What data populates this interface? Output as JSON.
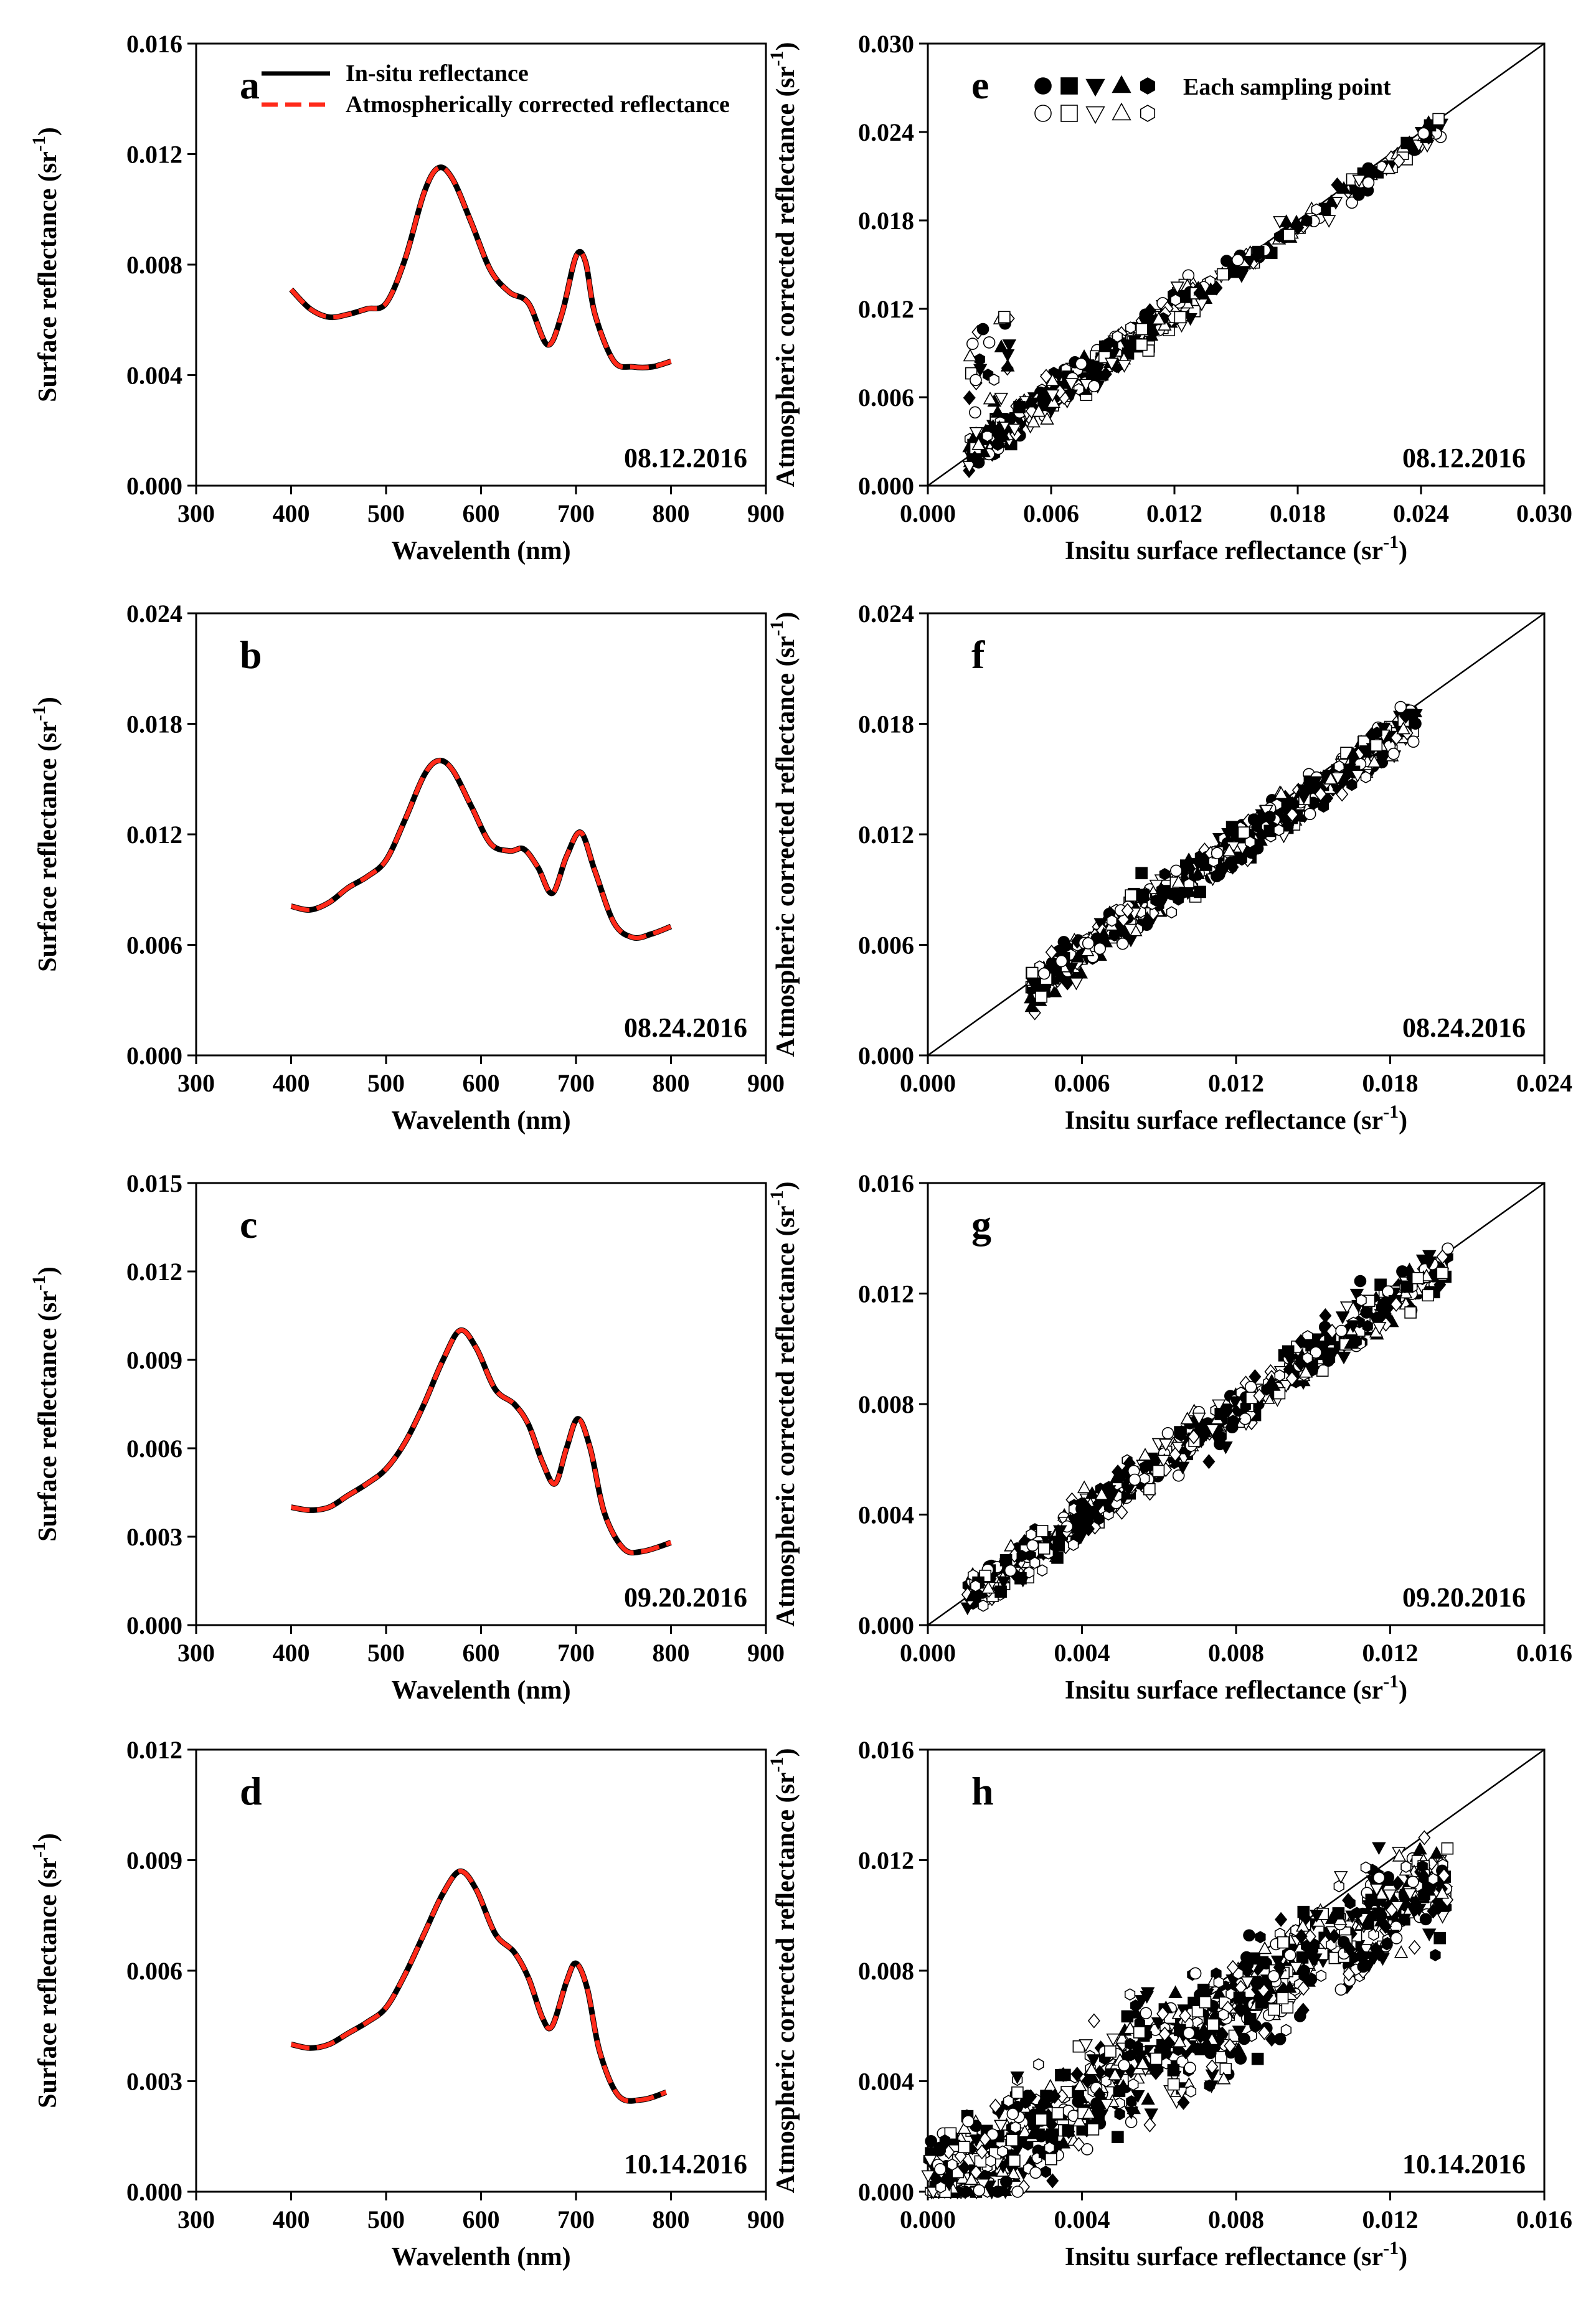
{
  "chart_data": [
    {
      "panel": "a",
      "type": "line",
      "date": "08.12.2016",
      "xlabel": "Wavelenth (nm)",
      "ylabel": "Surface reflectance (sr",
      "ylabel_sup": "-1",
      "ylabel_close": ")",
      "xlim": [
        300,
        900
      ],
      "ylim": [
        0,
        0.016
      ],
      "xticks": [
        "300",
        "400",
        "500",
        "600",
        "700",
        "800",
        "900"
      ],
      "yticks": [
        "0.000",
        "0.004",
        "0.008",
        "0.012",
        "0.016"
      ],
      "legend": [
        "In-situ reflectance",
        "Atmospherically corrected reflectance"
      ],
      "series": [
        {
          "name": "In-situ reflectance",
          "color": "#000000",
          "x": [
            400,
            420,
            440,
            460,
            480,
            500,
            520,
            540,
            555,
            570,
            590,
            610,
            630,
            650,
            670,
            685,
            700,
            710,
            720,
            740,
            760,
            780,
            800
          ],
          "y": [
            0.0071,
            0.0064,
            0.0061,
            0.0062,
            0.0064,
            0.0066,
            0.0082,
            0.0106,
            0.0115,
            0.0111,
            0.0095,
            0.0078,
            0.007,
            0.0066,
            0.0051,
            0.0062,
            0.0083,
            0.0081,
            0.0062,
            0.0045,
            0.0043,
            0.0043,
            0.0045
          ]
        },
        {
          "name": "Atmospherically corrected reflectance",
          "color": "#ff2a1a",
          "x": [
            400,
            420,
            440,
            460,
            480,
            500,
            520,
            540,
            555,
            570,
            590,
            610,
            630,
            650,
            670,
            685,
            700,
            710,
            720,
            740,
            760,
            780,
            800
          ],
          "y": [
            0.0071,
            0.0064,
            0.0061,
            0.0062,
            0.0064,
            0.0066,
            0.0082,
            0.0106,
            0.0115,
            0.0111,
            0.0095,
            0.0078,
            0.007,
            0.0066,
            0.0051,
            0.0062,
            0.0083,
            0.0081,
            0.0062,
            0.0045,
            0.0043,
            0.0043,
            0.0045
          ]
        }
      ]
    },
    {
      "panel": "b",
      "type": "line",
      "date": "08.24.2016",
      "xlabel": "Wavelenth (nm)",
      "ylabel": "Surface reflectance (sr",
      "ylabel_sup": "-1",
      "ylabel_close": ")",
      "xlim": [
        300,
        900
      ],
      "ylim": [
        0,
        0.024
      ],
      "xticks": [
        "300",
        "400",
        "500",
        "600",
        "700",
        "800",
        "900"
      ],
      "yticks": [
        "0.000",
        "0.006",
        "0.012",
        "0.018",
        "0.024"
      ],
      "series": [
        {
          "name": "In-situ reflectance",
          "color": "#000000",
          "x": [
            400,
            420,
            440,
            460,
            480,
            500,
            520,
            540,
            555,
            570,
            590,
            610,
            630,
            645,
            660,
            675,
            690,
            705,
            720,
            740,
            760,
            780,
            800
          ],
          "y": [
            0.0081,
            0.0079,
            0.0083,
            0.0091,
            0.0097,
            0.0106,
            0.0128,
            0.0152,
            0.016,
            0.0155,
            0.0135,
            0.0115,
            0.0111,
            0.0112,
            0.0102,
            0.0088,
            0.0108,
            0.0121,
            0.01,
            0.0072,
            0.0064,
            0.0066,
            0.007
          ]
        },
        {
          "name": "Atmospherically corrected reflectance",
          "color": "#ff2a1a",
          "x": [
            400,
            420,
            440,
            460,
            480,
            500,
            520,
            540,
            555,
            570,
            590,
            610,
            630,
            645,
            660,
            675,
            690,
            705,
            720,
            740,
            760,
            780,
            800
          ],
          "y": [
            0.0081,
            0.0079,
            0.0083,
            0.0091,
            0.0097,
            0.0106,
            0.0128,
            0.0152,
            0.016,
            0.0155,
            0.0135,
            0.0115,
            0.0111,
            0.0112,
            0.0102,
            0.0088,
            0.0108,
            0.0121,
            0.01,
            0.0072,
            0.0064,
            0.0066,
            0.007
          ]
        }
      ]
    },
    {
      "panel": "c",
      "type": "line",
      "date": "09.20.2016",
      "xlabel": "Wavelenth (nm)",
      "ylabel": "Surface reflectance (sr",
      "ylabel_sup": "-1",
      "ylabel_close": ")",
      "xlim": [
        300,
        900
      ],
      "ylim": [
        0,
        0.015
      ],
      "xticks": [
        "300",
        "400",
        "500",
        "600",
        "700",
        "800",
        "900"
      ],
      "yticks": [
        "0.000",
        "0.003",
        "0.006",
        "0.009",
        "0.012",
        "0.015"
      ],
      "series": [
        {
          "name": "In-situ reflectance",
          "color": "#000000",
          "x": [
            400,
            420,
            440,
            460,
            480,
            500,
            520,
            540,
            560,
            578,
            595,
            615,
            635,
            650,
            665,
            678,
            690,
            702,
            715,
            730,
            750,
            770,
            800
          ],
          "y": [
            0.004,
            0.0039,
            0.004,
            0.0044,
            0.0048,
            0.0053,
            0.0062,
            0.0075,
            0.009,
            0.01,
            0.0094,
            0.008,
            0.0075,
            0.0068,
            0.0055,
            0.0048,
            0.006,
            0.007,
            0.006,
            0.0038,
            0.0026,
            0.0025,
            0.0028
          ]
        },
        {
          "name": "Atmospherically corrected reflectance",
          "color": "#ff2a1a",
          "x": [
            400,
            420,
            440,
            460,
            480,
            500,
            520,
            540,
            560,
            578,
            595,
            615,
            635,
            650,
            665,
            678,
            690,
            702,
            715,
            730,
            750,
            770,
            800
          ],
          "y": [
            0.004,
            0.0039,
            0.004,
            0.0044,
            0.0048,
            0.0053,
            0.0062,
            0.0075,
            0.009,
            0.01,
            0.0094,
            0.008,
            0.0075,
            0.0068,
            0.0055,
            0.0048,
            0.006,
            0.007,
            0.006,
            0.0038,
            0.0026,
            0.0025,
            0.0028
          ]
        }
      ]
    },
    {
      "panel": "d",
      "type": "line",
      "date": "10.14.2016",
      "xlabel": "Wavelenth (nm)",
      "ylabel": "Surface reflectance (sr",
      "ylabel_sup": "-1",
      "ylabel_close": ")",
      "xlim": [
        300,
        900
      ],
      "ylim": [
        0,
        0.012
      ],
      "xticks": [
        "300",
        "400",
        "500",
        "600",
        "700",
        "800",
        "900"
      ],
      "yticks": [
        "0.000",
        "0.003",
        "0.006",
        "0.009",
        "0.012"
      ],
      "series": [
        {
          "name": "In-situ reflectance",
          "color": "#000000",
          "x": [
            400,
            420,
            440,
            460,
            480,
            500,
            520,
            540,
            560,
            578,
            595,
            615,
            635,
            650,
            665,
            675,
            690,
            700,
            712,
            725,
            745,
            770,
            795
          ],
          "y": [
            0.004,
            0.0039,
            0.004,
            0.0043,
            0.0046,
            0.005,
            0.0059,
            0.007,
            0.0081,
            0.0087,
            0.0082,
            0.007,
            0.0065,
            0.0058,
            0.0047,
            0.0045,
            0.0057,
            0.0062,
            0.0055,
            0.0038,
            0.0026,
            0.0025,
            0.0027
          ]
        },
        {
          "name": "Atmospherically corrected reflectance",
          "color": "#ff2a1a",
          "x": [
            400,
            420,
            440,
            460,
            480,
            500,
            520,
            540,
            560,
            578,
            595,
            615,
            635,
            650,
            665,
            675,
            690,
            700,
            712,
            725,
            745,
            770,
            795
          ],
          "y": [
            0.004,
            0.0039,
            0.004,
            0.0043,
            0.0046,
            0.005,
            0.0059,
            0.007,
            0.0081,
            0.0087,
            0.0082,
            0.007,
            0.0065,
            0.0058,
            0.0047,
            0.0045,
            0.0057,
            0.0062,
            0.0055,
            0.0038,
            0.0026,
            0.0025,
            0.0027
          ]
        }
      ]
    },
    {
      "panel": "e",
      "type": "scatter",
      "date": "08.12.2016",
      "xlabel": "Insitu surface reflectance (sr",
      "xlabel_sup": "-1",
      "xlabel_close": ")",
      "ylabel": "Atmospheric corrected reflectance (sr",
      "ylabel_sup": "-1",
      "ylabel_close": ")",
      "xlim": [
        0,
        0.03
      ],
      "ylim": [
        0,
        0.03
      ],
      "xticks": [
        "0.000",
        "0.006",
        "0.012",
        "0.018",
        "0.024",
        "0.030"
      ],
      "yticks": [
        "0.000",
        "0.006",
        "0.012",
        "0.018",
        "0.024",
        "0.030"
      ],
      "legend_label": "Each sampling point",
      "reference_line": "1:1",
      "clusters": [
        {
          "x_range": [
            0.002,
            0.013
          ],
          "slope": 1.0,
          "noise": 0.0009,
          "n": 420
        },
        {
          "x_range": [
            0.013,
            0.025
          ],
          "slope": 0.98,
          "noise": 0.0006,
          "n": 120
        },
        {
          "x_range": [
            0.002,
            0.004
          ],
          "slope": 2.5,
          "noise": 0.0012,
          "n": 30
        }
      ]
    },
    {
      "panel": "f",
      "type": "scatter",
      "date": "08.24.2016",
      "xlabel": "Insitu surface reflectance (sr",
      "xlabel_sup": "-1",
      "xlabel_close": ")",
      "ylabel": "Atmospheric corrected reflectance (sr",
      "ylabel_sup": "-1",
      "ylabel_close": ")",
      "xlim": [
        0,
        0.024
      ],
      "ylim": [
        0,
        0.024
      ],
      "xticks": [
        "0.000",
        "0.006",
        "0.012",
        "0.018",
        "0.024"
      ],
      "yticks": [
        "0.000",
        "0.006",
        "0.012",
        "0.018",
        "0.024"
      ],
      "reference_line": "1:1",
      "clusters": [
        {
          "x_range": [
            0.004,
            0.019
          ],
          "slope": 0.95,
          "noise": 0.0008,
          "n": 650
        }
      ]
    },
    {
      "panel": "g",
      "type": "scatter",
      "date": "09.20.2016",
      "xlabel": "Insitu surface reflectance (sr",
      "xlabel_sup": "-1",
      "xlabel_close": ")",
      "ylabel": "Atmospheric corrected reflectance (sr",
      "ylabel_sup": "-1",
      "ylabel_close": ")",
      "xlim": [
        0,
        0.016
      ],
      "ylim": [
        0,
        0.016
      ],
      "xticks": [
        "0.000",
        "0.004",
        "0.008",
        "0.012",
        "0.016"
      ],
      "yticks": [
        "0.000",
        "0.004",
        "0.008",
        "0.012",
        "0.016"
      ],
      "reference_line": "1:1",
      "clusters": [
        {
          "x_range": [
            0.001,
            0.0135
          ],
          "slope": 0.98,
          "noise": 0.0006,
          "n": 600
        }
      ]
    },
    {
      "panel": "h",
      "type": "scatter",
      "date": "10.14.2016",
      "xlabel": "Insitu surface reflectance (sr",
      "xlabel_sup": "-1",
      "xlabel_close": ")",
      "ylabel": "Atmospheric corrected reflectance (sr",
      "ylabel_sup": "-1",
      "ylabel_close": ")",
      "xlim": [
        0,
        0.016
      ],
      "ylim": [
        0,
        0.016
      ],
      "xticks": [
        "0.000",
        "0.004",
        "0.008",
        "0.012",
        "0.016"
      ],
      "yticks": [
        "0.000",
        "0.004",
        "0.008",
        "0.012",
        "0.016"
      ],
      "reference_line": "1:1",
      "clusters": [
        {
          "x_range": [
            0.0,
            0.0135
          ],
          "slope": 0.85,
          "noise": 0.0014,
          "n": 900
        }
      ]
    }
  ]
}
